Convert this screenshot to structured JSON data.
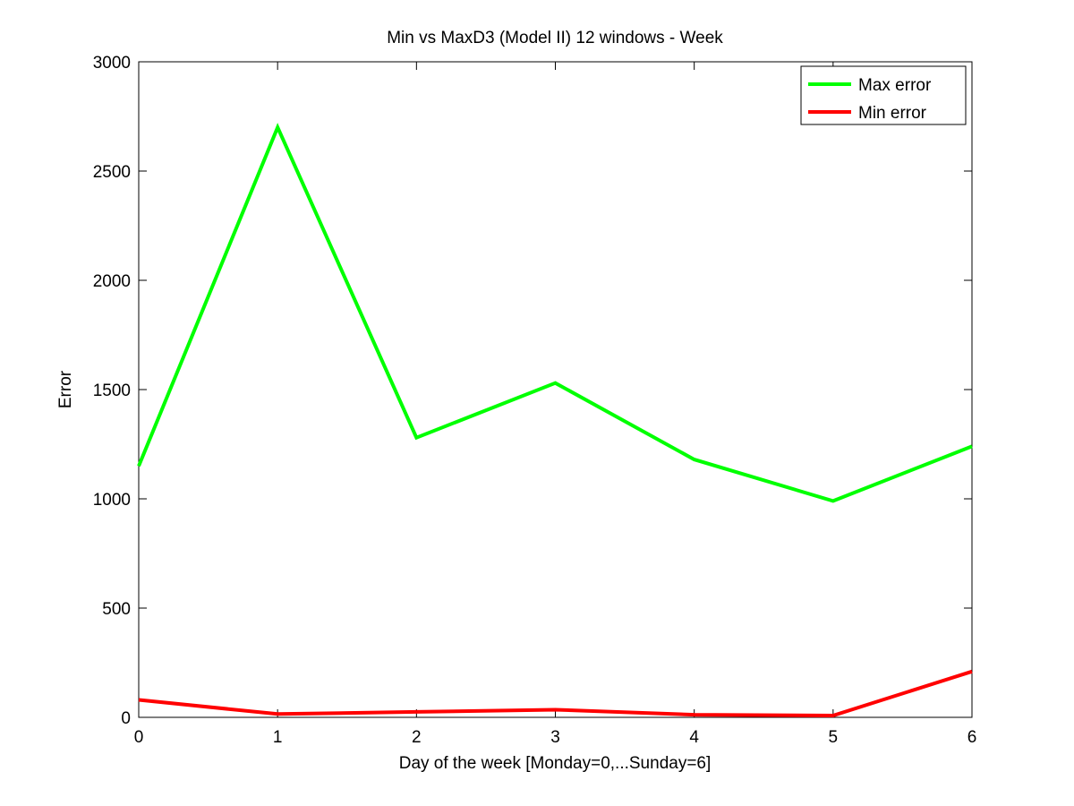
{
  "chart_data": {
    "type": "line",
    "title": "Min vs MaxD3 (Model II) 12 windows - Week",
    "xlabel": "Day of the week [Monday=0,...Sunday=6]",
    "ylabel": "Error",
    "xlim": [
      0,
      6
    ],
    "ylim": [
      0,
      3000
    ],
    "x": [
      0,
      1,
      2,
      3,
      4,
      5,
      6
    ],
    "xticks": [
      "0",
      "1",
      "2",
      "3",
      "4",
      "5",
      "6"
    ],
    "yticks": [
      "0",
      "500",
      "1000",
      "1500",
      "2000",
      "2500",
      "3000"
    ],
    "grid": false,
    "legend": "top-right",
    "series": [
      {
        "name": "Max error",
        "color": "#00ff00",
        "values": [
          1150,
          2700,
          1280,
          1530,
          1180,
          990,
          1240
        ]
      },
      {
        "name": "Min error",
        "color": "#ff0000",
        "values": [
          80,
          15,
          25,
          35,
          12,
          8,
          210
        ]
      }
    ]
  }
}
